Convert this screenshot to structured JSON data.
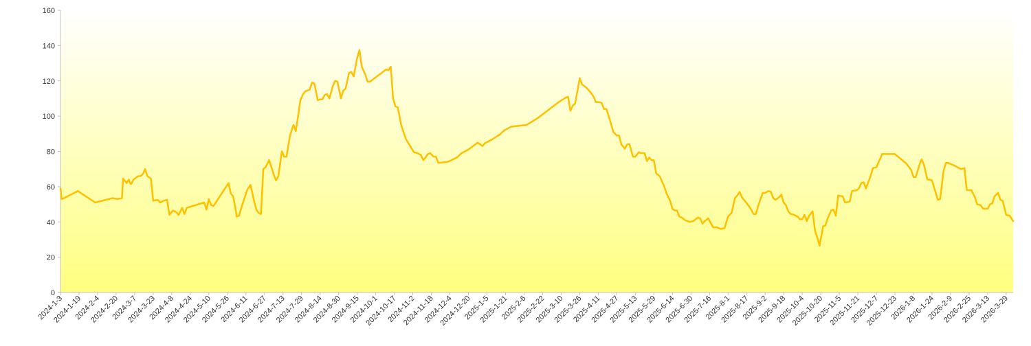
{
  "chart_data": {
    "type": "area",
    "title": "",
    "xlabel": "",
    "ylabel": "",
    "ylim": [
      0,
      160
    ],
    "yticks": [
      0,
      20,
      40,
      60,
      80,
      100,
      120,
      140,
      160
    ],
    "xlim": [
      "2024-1-3",
      "2026-4-4"
    ],
    "xticks": [
      "2024-1-3",
      "2024-1-19",
      "2024-2-4",
      "2024-2-20",
      "2024-3-7",
      "2024-3-23",
      "2024-4-8",
      "2024-4-24",
      "2024-5-10",
      "2024-5-26",
      "2024-6-11",
      "2024-6-27",
      "2024-7-13",
      "2024-7-29",
      "2024-8-14",
      "2024-8-30",
      "2024-9-15",
      "2024-10-1",
      "2024-10-17",
      "2024-11-2",
      "2024-11-18",
      "2024-12-4",
      "2024-12-20",
      "2025-1-5",
      "2025-1-21",
      "2025-2-6",
      "2025-2-22",
      "2025-3-10",
      "2025-3-26",
      "2025-4-11",
      "2025-4-27",
      "2025-5-13",
      "2025-5-29",
      "2025-6-14",
      "2025-6-30",
      "2025-7-16",
      "2025-8-1",
      "2025-8-17",
      "2025-9-2",
      "2025-9-18",
      "2025-10-4",
      "2025-10-20",
      "2025-11-5",
      "2025-11-21",
      "2025-12-7",
      "2025-12-23",
      "2026-1-8",
      "2026-1-24",
      "2026-2-9",
      "2026-2-25",
      "2026-3-13",
      "2026-3-29"
    ],
    "grid": false,
    "legend": "none",
    "colors": {
      "line": "#ffc000",
      "fill_top": "#ffffff",
      "fill_bottom": "#ffff80",
      "axis": "#bfbfbf"
    },
    "series": [
      {
        "values": [
          [
            "2024-1-3",
            59
          ],
          [
            "2024-1-4",
            53
          ],
          [
            "2024-1-6",
            53.5
          ],
          [
            "2024-1-18",
            57.5
          ],
          [
            "2024-2-2",
            51
          ],
          [
            "2024-2-17",
            53.5
          ],
          [
            "2024-2-21",
            53
          ],
          [
            "2024-2-25",
            53.5
          ],
          [
            "2024-2-26",
            64.5
          ],
          [
            "2024-2-28",
            63
          ],
          [
            "2024-2-29",
            62
          ],
          [
            "2024-3-2",
            64
          ],
          [
            "2024-3-3",
            62
          ],
          [
            "2024-3-4",
            61.5
          ],
          [
            "2024-3-6",
            64
          ],
          [
            "2024-3-8",
            65
          ],
          [
            "2024-3-10",
            66
          ],
          [
            "2024-3-12",
            66
          ],
          [
            "2024-3-14",
            67
          ],
          [
            "2024-3-16",
            70
          ],
          [
            "2024-3-18",
            66
          ],
          [
            "2024-3-21",
            64.5
          ],
          [
            "2024-3-23",
            52
          ],
          [
            "2024-3-27",
            52.5
          ],
          [
            "2024-3-29",
            51
          ],
          [
            "2024-4-1",
            52
          ],
          [
            "2024-4-4",
            52.5
          ],
          [
            "2024-4-6",
            44
          ],
          [
            "2024-4-9",
            46.5
          ],
          [
            "2024-4-12",
            45.5
          ],
          [
            "2024-4-14",
            44
          ],
          [
            "2024-4-17",
            48
          ],
          [
            "2024-4-19",
            44.5
          ],
          [
            "2024-4-21",
            48
          ],
          [
            "2024-5-6",
            51
          ],
          [
            "2024-5-8",
            47
          ],
          [
            "2024-5-10",
            53
          ],
          [
            "2024-5-12",
            49.5
          ],
          [
            "2024-5-14",
            49
          ],
          [
            "2024-5-27",
            62
          ],
          [
            "2024-5-29",
            56
          ],
          [
            "2024-5-31",
            54.5
          ],
          [
            "2024-6-2",
            47.5
          ],
          [
            "2024-6-3",
            43
          ],
          [
            "2024-6-5",
            43.5
          ],
          [
            "2024-6-8",
            50
          ],
          [
            "2024-6-12",
            58
          ],
          [
            "2024-6-15",
            61
          ],
          [
            "2024-6-18",
            52
          ],
          [
            "2024-6-20",
            47
          ],
          [
            "2024-6-22",
            45
          ],
          [
            "2024-6-24",
            44.5
          ],
          [
            "2024-6-26",
            70
          ],
          [
            "2024-6-28",
            71
          ],
          [
            "2024-7-1",
            75
          ],
          [
            "2024-7-3",
            71
          ],
          [
            "2024-7-5",
            67
          ],
          [
            "2024-7-7",
            63.5
          ],
          [
            "2024-7-9",
            66
          ],
          [
            "2024-7-12",
            80
          ],
          [
            "2024-7-14",
            77
          ],
          [
            "2024-7-16",
            77
          ],
          [
            "2024-7-19",
            89
          ],
          [
            "2024-7-22",
            95
          ],
          [
            "2024-7-24",
            91.5
          ],
          [
            "2024-7-26",
            100
          ],
          [
            "2024-7-28",
            109
          ],
          [
            "2024-7-30",
            112
          ],
          [
            "2024-8-1",
            114
          ],
          [
            "2024-8-5",
            115
          ],
          [
            "2024-8-7",
            119
          ],
          [
            "2024-8-9",
            118.5
          ],
          [
            "2024-8-12",
            109
          ],
          [
            "2024-8-14",
            109.5
          ],
          [
            "2024-8-16",
            109.5
          ],
          [
            "2024-8-18",
            112
          ],
          [
            "2024-8-20",
            112.5
          ],
          [
            "2024-8-22",
            110
          ],
          [
            "2024-8-25",
            117
          ],
          [
            "2024-8-27",
            120
          ],
          [
            "2024-8-29",
            119.5
          ],
          [
            "2024-9-1",
            110
          ],
          [
            "2024-9-3",
            114.5
          ],
          [
            "2024-9-5",
            115.5
          ],
          [
            "2024-9-8",
            124.5
          ],
          [
            "2024-9-10",
            125
          ],
          [
            "2024-9-12",
            122.5
          ],
          [
            "2024-9-15",
            133
          ],
          [
            "2024-9-17",
            137.5
          ],
          [
            "2024-9-19",
            128
          ],
          [
            "2024-9-22",
            123.5
          ],
          [
            "2024-9-24",
            119.5
          ],
          [
            "2024-9-26",
            119.5
          ],
          [
            "2024-10-10",
            126.5
          ],
          [
            "2024-10-12",
            126
          ],
          [
            "2024-10-14",
            128
          ],
          [
            "2024-10-16",
            110
          ],
          [
            "2024-10-18",
            105.5
          ],
          [
            "2024-10-20",
            105
          ],
          [
            "2024-10-23",
            95
          ],
          [
            "2024-10-27",
            87
          ],
          [
            "2024-11-3",
            79.5
          ],
          [
            "2024-11-6",
            79
          ],
          [
            "2024-11-9",
            78
          ],
          [
            "2024-11-11",
            75
          ],
          [
            "2024-11-13",
            76.5
          ],
          [
            "2024-11-15",
            78.5
          ],
          [
            "2024-11-17",
            79
          ],
          [
            "2024-11-20",
            77
          ],
          [
            "2024-11-22",
            77
          ],
          [
            "2024-11-24",
            73.5
          ],
          [
            "2024-12-2",
            74
          ],
          [
            "2024-12-10",
            76.5
          ],
          [
            "2024-12-14",
            79
          ],
          [
            "2024-12-20",
            81
          ],
          [
            "2024-12-24",
            83
          ],
          [
            "2024-12-28",
            85
          ],
          [
            "2024-12-30",
            84
          ],
          [
            "2025-1-1",
            83
          ],
          [
            "2025-1-3",
            84.5
          ],
          [
            "2025-1-10",
            87
          ],
          [
            "2025-1-16",
            89.5
          ],
          [
            "2025-1-20",
            92
          ],
          [
            "2025-1-26",
            94
          ],
          [
            "2025-2-8",
            95
          ],
          [
            "2025-2-12",
            96.5
          ],
          [
            "2025-2-18",
            99
          ],
          [
            "2025-2-24",
            102
          ],
          [
            "2025-2-28",
            104
          ],
          [
            "2025-3-4",
            106
          ],
          [
            "2025-3-8",
            108
          ],
          [
            "2025-3-14",
            110.5
          ],
          [
            "2025-3-16",
            111
          ],
          [
            "2025-3-18",
            103
          ],
          [
            "2025-3-20",
            106
          ],
          [
            "2025-3-22",
            107
          ],
          [
            "2025-3-24",
            114
          ],
          [
            "2025-3-26",
            121.5
          ],
          [
            "2025-3-28",
            118
          ],
          [
            "2025-4-1",
            116
          ],
          [
            "2025-4-5",
            113
          ],
          [
            "2025-4-7",
            111
          ],
          [
            "2025-4-9",
            108
          ],
          [
            "2025-4-11",
            108
          ],
          [
            "2025-4-14",
            107.5
          ],
          [
            "2025-4-16",
            104
          ],
          [
            "2025-4-18",
            104
          ],
          [
            "2025-4-21",
            98
          ],
          [
            "2025-4-24",
            91
          ],
          [
            "2025-4-27",
            89
          ],
          [
            "2025-4-29",
            89
          ],
          [
            "2025-5-1",
            84
          ],
          [
            "2025-5-4",
            81.5
          ],
          [
            "2025-5-6",
            84
          ],
          [
            "2025-5-8",
            84
          ],
          [
            "2025-5-11",
            77
          ],
          [
            "2025-5-13",
            77
          ],
          [
            "2025-5-16",
            79.5
          ],
          [
            "2025-5-18",
            79
          ],
          [
            "2025-5-21",
            79
          ],
          [
            "2025-5-23",
            74.5
          ],
          [
            "2025-5-25",
            76.5
          ],
          [
            "2025-5-27",
            75
          ],
          [
            "2025-5-29",
            75
          ],
          [
            "2025-5-31",
            67.5
          ],
          [
            "2025-6-3",
            66
          ],
          [
            "2025-6-5",
            63
          ],
          [
            "2025-6-7",
            60
          ],
          [
            "2025-6-9",
            56
          ],
          [
            "2025-6-12",
            52
          ],
          [
            "2025-6-14",
            47.5
          ],
          [
            "2025-6-16",
            46.5
          ],
          [
            "2025-6-18",
            46.5
          ],
          [
            "2025-6-20",
            43
          ],
          [
            "2025-6-22",
            42.5
          ],
          [
            "2025-6-25",
            41
          ],
          [
            "2025-6-29",
            40
          ],
          [
            "2025-7-2",
            40.5
          ],
          [
            "2025-7-6",
            42.5
          ],
          [
            "2025-7-8",
            42
          ],
          [
            "2025-7-10",
            39
          ],
          [
            "2025-7-12",
            40.5
          ],
          [
            "2025-7-15",
            42
          ],
          [
            "2025-7-17",
            39.5
          ],
          [
            "2025-7-19",
            37
          ],
          [
            "2025-7-22",
            37
          ],
          [
            "2025-7-26",
            36
          ],
          [
            "2025-7-29",
            36.5
          ],
          [
            "2025-8-1",
            43
          ],
          [
            "2025-8-4",
            45
          ],
          [
            "2025-8-7",
            53.5
          ],
          [
            "2025-8-9",
            55
          ],
          [
            "2025-8-11",
            57
          ],
          [
            "2025-8-13",
            54
          ],
          [
            "2025-8-16",
            51.5
          ],
          [
            "2025-8-19",
            49
          ],
          [
            "2025-8-21",
            47
          ],
          [
            "2025-8-23",
            44.5
          ],
          [
            "2025-8-25",
            44.5
          ],
          [
            "2025-8-28",
            51
          ],
          [
            "2025-8-31",
            56.5
          ],
          [
            "2025-9-2",
            56.5
          ],
          [
            "2025-9-5",
            57.5
          ],
          [
            "2025-9-7",
            57
          ],
          [
            "2025-9-9",
            53.5
          ],
          [
            "2025-9-11",
            52.5
          ],
          [
            "2025-9-14",
            54
          ],
          [
            "2025-9-16",
            55.5
          ],
          [
            "2025-9-18",
            51
          ],
          [
            "2025-9-20",
            49.5
          ],
          [
            "2025-9-22",
            46
          ],
          [
            "2025-9-24",
            44.5
          ],
          [
            "2025-9-27",
            44
          ],
          [
            "2025-9-30",
            43
          ],
          [
            "2025-10-2",
            41.5
          ],
          [
            "2025-10-4",
            41.5
          ],
          [
            "2025-10-6",
            44
          ],
          [
            "2025-10-8",
            40.5
          ],
          [
            "2025-10-10",
            43.5
          ],
          [
            "2025-10-13",
            46
          ],
          [
            "2025-10-15",
            35
          ],
          [
            "2025-10-18",
            29
          ],
          [
            "2025-10-19",
            26.5
          ],
          [
            "2025-10-22",
            37.5
          ],
          [
            "2025-10-24",
            38
          ],
          [
            "2025-10-26",
            42
          ],
          [
            "2025-10-29",
            46.5
          ],
          [
            "2025-10-31",
            47
          ],
          [
            "2025-11-2",
            43.5
          ],
          [
            "2025-11-4",
            55
          ],
          [
            "2025-11-8",
            54.5
          ],
          [
            "2025-11-10",
            51
          ],
          [
            "2025-11-14",
            51.5
          ],
          [
            "2025-11-16",
            57.5
          ],
          [
            "2025-11-20",
            58
          ],
          [
            "2025-11-22",
            59
          ],
          [
            "2025-11-24",
            62
          ],
          [
            "2025-11-26",
            62.5
          ],
          [
            "2025-11-28",
            59
          ],
          [
            "2025-12-2",
            66
          ],
          [
            "2025-12-4",
            70.5
          ],
          [
            "2025-12-7",
            71
          ],
          [
            "2025-12-9",
            74
          ],
          [
            "2025-12-12",
            78.5
          ],
          [
            "2025-12-23",
            78.5
          ],
          [
            "2026-1-2",
            73
          ],
          [
            "2026-1-6",
            69.5
          ],
          [
            "2026-1-8",
            65.5
          ],
          [
            "2026-1-10",
            65.5
          ],
          [
            "2026-1-13",
            72
          ],
          [
            "2026-1-15",
            75.5
          ],
          [
            "2026-1-17",
            72.5
          ],
          [
            "2026-1-20",
            64
          ],
          [
            "2026-1-22",
            64
          ],
          [
            "2026-1-24",
            63.5
          ],
          [
            "2026-1-27",
            57
          ],
          [
            "2026-1-29",
            52.5
          ],
          [
            "2026-1-31",
            53
          ],
          [
            "2026-2-3",
            69
          ],
          [
            "2026-2-5",
            73.5
          ],
          [
            "2026-2-7",
            73.5
          ],
          [
            "2026-2-12",
            72
          ],
          [
            "2026-2-18",
            70
          ],
          [
            "2026-2-21",
            70.5
          ],
          [
            "2026-2-23",
            58
          ],
          [
            "2026-2-27",
            58
          ],
          [
            "2026-3-2",
            54
          ],
          [
            "2026-3-4",
            50
          ],
          [
            "2026-3-7",
            49.5
          ],
          [
            "2026-3-9",
            47.5
          ],
          [
            "2026-3-13",
            47.5
          ],
          [
            "2026-3-15",
            50
          ],
          [
            "2026-3-17",
            50.5
          ],
          [
            "2026-3-19",
            54.5
          ],
          [
            "2026-3-22",
            56.5
          ],
          [
            "2026-3-24",
            52.5
          ],
          [
            "2026-3-26",
            52
          ],
          [
            "2026-3-29",
            44
          ],
          [
            "2026-4-1",
            43.5
          ],
          [
            "2026-4-4",
            40.5
          ]
        ]
      }
    ]
  }
}
